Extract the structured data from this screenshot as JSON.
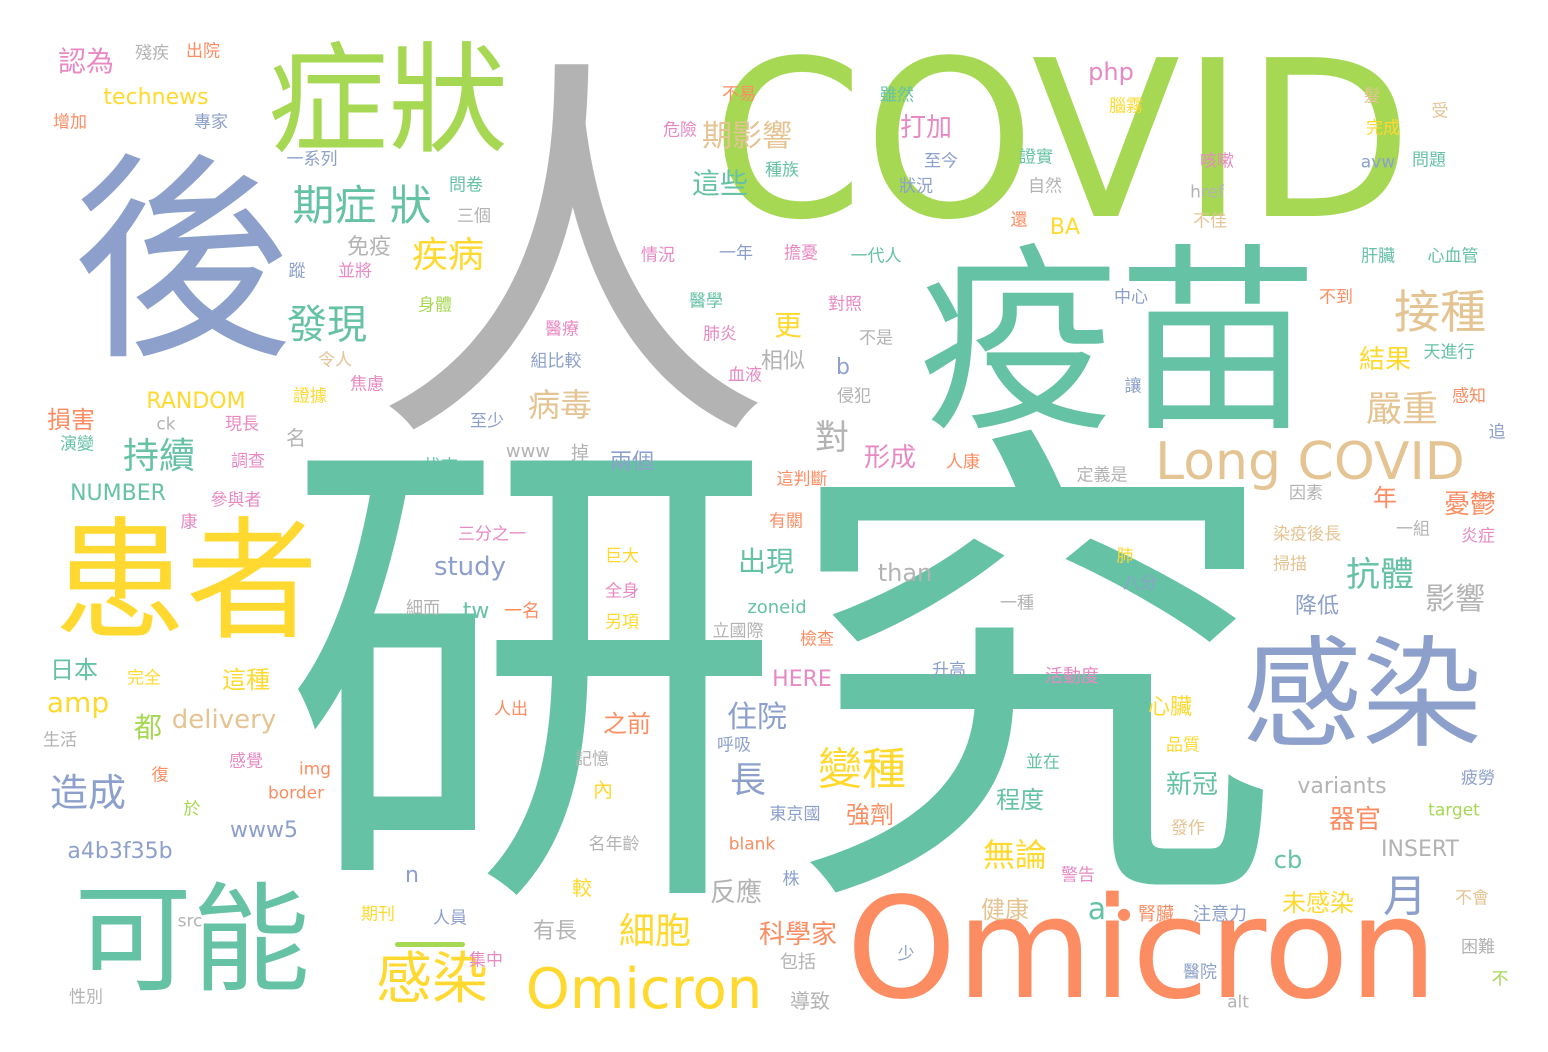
{
  "palette": {
    "green": "#66c2a5",
    "orange": "#fc8d62",
    "blue": "#8da0cb",
    "pink": "#e78ac3",
    "lime": "#a6d854",
    "yellow": "#ffd92f",
    "tan": "#e5c494",
    "gray": "#b3b3b3"
  },
  "words": [
    {
      "text": "研究",
      "color": "green"
    },
    {
      "text": "人",
      "color": "gray"
    },
    {
      "text": "COVID",
      "color": "lime"
    },
    {
      "text": "疫苗",
      "color": "green"
    },
    {
      "text": "後",
      "color": "blue"
    },
    {
      "text": "Omicron",
      "color": "orange"
    },
    {
      "text": "患者",
      "color": "yellow"
    },
    {
      "text": "症狀",
      "color": "lime"
    },
    {
      "text": "感染",
      "color": "blue"
    },
    {
      "text": "可能",
      "color": "green"
    },
    {
      "text": "Long COVID",
      "color": "tan"
    },
    {
      "text": "Omicron",
      "color": "yellow"
    },
    {
      "text": "感染",
      "color": "yellow"
    },
    {
      "text": "期症 狀",
      "color": "green"
    },
    {
      "text": "接種",
      "color": "tan"
    },
    {
      "text": "發現",
      "color": "green"
    },
    {
      "text": "變種",
      "color": "yellow"
    },
    {
      "text": "疾病",
      "color": "yellow"
    },
    {
      "text": "持續",
      "color": "green"
    },
    {
      "text": "造成",
      "color": "blue"
    },
    {
      "text": "嚴重",
      "color": "tan"
    },
    {
      "text": "病毒",
      "color": "tan"
    },
    {
      "text": "期影響",
      "color": "tan"
    },
    {
      "text": "抗體",
      "color": "green"
    },
    {
      "text": "月",
      "color": "blue"
    },
    {
      "text": "細胞",
      "color": "yellow"
    },
    {
      "text": "住院",
      "color": "blue"
    },
    {
      "text": "無論",
      "color": "yellow"
    },
    {
      "text": "結果",
      "color": "yellow"
    },
    {
      "text": "影響",
      "color": "gray"
    },
    {
      "text": "憂鬱",
      "color": "orange"
    },
    {
      "text": "長",
      "color": "blue"
    },
    {
      "text": "更",
      "color": "yellow"
    },
    {
      "text": "對",
      "color": "gray"
    },
    {
      "text": "這些",
      "color": "green"
    },
    {
      "text": "形成",
      "color": "pink"
    },
    {
      "text": "打加",
      "color": "pink"
    },
    {
      "text": "出現",
      "color": "green"
    },
    {
      "text": "強劑",
      "color": "orange"
    },
    {
      "text": "程度",
      "color": "green"
    },
    {
      "text": "新冠",
      "color": "green"
    },
    {
      "text": "器官",
      "color": "orange"
    },
    {
      "text": "科學家",
      "color": "orange"
    },
    {
      "text": "未感染",
      "color": "yellow"
    },
    {
      "text": "反應",
      "color": "gray"
    },
    {
      "text": "健康",
      "color": "tan"
    },
    {
      "text": "兩個",
      "color": "blue"
    },
    {
      "text": "相似",
      "color": "gray"
    },
    {
      "text": "之前",
      "color": "orange"
    },
    {
      "text": "心臟",
      "color": "yellow"
    },
    {
      "text": "降低",
      "color": "blue"
    },
    {
      "text": "年",
      "color": "orange"
    },
    {
      "text": "這種",
      "color": "yellow"
    },
    {
      "text": "都",
      "color": "lime"
    },
    {
      "text": "損害",
      "color": "orange"
    },
    {
      "text": "日本",
      "color": "green"
    },
    {
      "text": "免疫",
      "color": "gray"
    },
    {
      "text": "認為",
      "color": "pink"
    },
    {
      "text": "study",
      "color": "blue"
    },
    {
      "text": "delivery",
      "color": "tan"
    },
    {
      "text": "amp",
      "color": "yellow"
    },
    {
      "text": "RANDOM",
      "color": "yellow"
    },
    {
      "text": "NUMBER",
      "color": "green"
    },
    {
      "text": "a4b3f35b",
      "color": "blue"
    },
    {
      "text": "www5",
      "color": "blue"
    },
    {
      "text": "technews",
      "color": "yellow"
    },
    {
      "text": "php",
      "color": "pink"
    },
    {
      "text": "variants",
      "color": "gray"
    },
    {
      "text": "INSERT",
      "color": "gray"
    },
    {
      "text": "than",
      "color": "gray"
    },
    {
      "text": "HERE",
      "color": "pink"
    },
    {
      "text": "BA",
      "color": "yellow"
    },
    {
      "text": "tw",
      "color": "green"
    },
    {
      "text": "一名",
      "color": "orange"
    },
    {
      "text": "cb",
      "color": "green"
    },
    {
      "text": "a",
      "color": "green"
    },
    {
      "text": "●",
      "color": "orange"
    },
    {
      "text": "腎臟",
      "color": "orange"
    },
    {
      "text": "注意力",
      "color": "blue"
    },
    {
      "text": "n",
      "color": "blue"
    },
    {
      "text": "b",
      "color": "blue"
    },
    {
      "text": "名",
      "color": "gray"
    },
    {
      "text": "內",
      "color": "yellow"
    },
    {
      "text": "較",
      "color": "yellow"
    },
    {
      "text": "有長",
      "color": "gray"
    },
    {
      "text": "導致",
      "color": "gray"
    },
    {
      "text": "包括",
      "color": "gray"
    },
    {
      "text": "www",
      "color": "gray"
    },
    {
      "text": "掉",
      "color": "gray"
    },
    {
      "text": "找來",
      "color": "green"
    },
    {
      "text": "至少",
      "color": "blue"
    },
    {
      "text": "三分之一",
      "color": "pink"
    },
    {
      "text": "巨大",
      "color": "yellow"
    },
    {
      "text": "全身",
      "color": "pink"
    },
    {
      "text": "另項",
      "color": "yellow"
    },
    {
      "text": "zoneid",
      "color": "green"
    },
    {
      "text": "立國際",
      "color": "gray"
    },
    {
      "text": "檢查",
      "color": "orange"
    },
    {
      "text": "升高",
      "color": "blue"
    },
    {
      "text": "活動度",
      "color": "pink"
    },
    {
      "text": "東京國",
      "color": "blue"
    },
    {
      "text": "blank",
      "color": "orange"
    },
    {
      "text": "株",
      "color": "blue"
    },
    {
      "text": "期刊",
      "color": "yellow"
    },
    {
      "text": "人員",
      "color": "blue"
    },
    {
      "text": "集中",
      "color": "pink"
    },
    {
      "text": "少",
      "color": "blue"
    },
    {
      "text": "名年齡",
      "color": "gray"
    },
    {
      "text": "記憶",
      "color": "gray"
    },
    {
      "text": "呼吸",
      "color": "blue"
    },
    {
      "text": "並在",
      "color": "green"
    },
    {
      "text": "品質",
      "color": "yellow"
    },
    {
      "text": "發作",
      "color": "tan"
    },
    {
      "text": "警告",
      "color": "pink"
    },
    {
      "text": "醫院",
      "color": "blue"
    },
    {
      "text": "困難",
      "color": "gray"
    },
    {
      "text": "不會",
      "color": "tan"
    },
    {
      "text": "不",
      "color": "lime"
    },
    {
      "text": "alt",
      "color": "gray"
    },
    {
      "text": "target",
      "color": "lime"
    },
    {
      "text": "疲勞",
      "color": "blue"
    },
    {
      "text": "細而",
      "color": "gray"
    },
    {
      "text": "一種",
      "color": "gray"
    },
    {
      "text": "八分",
      "color": "blue"
    },
    {
      "text": "掃描",
      "color": "tan"
    },
    {
      "text": "肺",
      "color": "yellow"
    },
    {
      "text": "染疫後長",
      "color": "tan"
    },
    {
      "text": "一組",
      "color": "gray"
    },
    {
      "text": "炎症",
      "color": "pink"
    },
    {
      "text": "因素",
      "color": "gray"
    },
    {
      "text": "定義是",
      "color": "gray"
    },
    {
      "text": "追",
      "color": "blue"
    },
    {
      "text": "感知",
      "color": "orange"
    },
    {
      "text": "讓",
      "color": "blue"
    },
    {
      "text": "天進行",
      "color": "green"
    },
    {
      "text": "不到",
      "color": "orange"
    },
    {
      "text": "中心",
      "color": "blue"
    },
    {
      "text": "肝臟",
      "color": "green"
    },
    {
      "text": "心血管",
      "color": "green"
    },
    {
      "text": "不佳",
      "color": "tan"
    },
    {
      "text": "href",
      "color": "gray"
    },
    {
      "text": "avw",
      "color": "blue"
    },
    {
      "text": "問題",
      "color": "green"
    },
    {
      "text": "完成",
      "color": "yellow"
    },
    {
      "text": "髮",
      "color": "tan"
    },
    {
      "text": "受",
      "color": "tan"
    },
    {
      "text": "咳嗽",
      "color": "pink"
    },
    {
      "text": "腦霧",
      "color": "yellow"
    },
    {
      "text": "證實",
      "color": "green"
    },
    {
      "text": "自然",
      "color": "gray"
    },
    {
      "text": "還",
      "color": "orange"
    },
    {
      "text": "雖然",
      "color": "green"
    },
    {
      "text": "不易",
      "color": "orange"
    },
    {
      "text": "危險",
      "color": "pink"
    },
    {
      "text": "種族",
      "color": "green"
    },
    {
      "text": "至今",
      "color": "blue"
    },
    {
      "text": "狀況",
      "color": "blue"
    },
    {
      "text": "一系列",
      "color": "blue"
    },
    {
      "text": "問卷",
      "color": "green"
    },
    {
      "text": "三個",
      "color": "gray"
    },
    {
      "text": "蹤",
      "color": "blue"
    },
    {
      "text": "並將",
      "color": "pink"
    },
    {
      "text": "身體",
      "color": "lime"
    },
    {
      "text": "令人",
      "color": "tan"
    },
    {
      "text": "焦慮",
      "color": "pink"
    },
    {
      "text": "證據",
      "color": "yellow"
    },
    {
      "text": "情況",
      "color": "pink"
    },
    {
      "text": "一年",
      "color": "blue"
    },
    {
      "text": "擔憂",
      "color": "pink"
    },
    {
      "text": "一代人",
      "color": "green"
    },
    {
      "text": "醫學",
      "color": "green"
    },
    {
      "text": "對照",
      "color": "pink"
    },
    {
      "text": "醫療",
      "color": "pink"
    },
    {
      "text": "肺炎",
      "color": "pink"
    },
    {
      "text": "組比較",
      "color": "blue"
    },
    {
      "text": "不是",
      "color": "gray"
    },
    {
      "text": "血液",
      "color": "pink"
    },
    {
      "text": "侵犯",
      "color": "gray"
    },
    {
      "text": "這判斷",
      "color": "orange"
    },
    {
      "text": "人康",
      "color": "orange"
    },
    {
      "text": "有關",
      "color": "orange"
    },
    {
      "text": "參與者",
      "color": "pink"
    },
    {
      "text": "康",
      "color": "pink"
    },
    {
      "text": "調查",
      "color": "pink"
    },
    {
      "text": "現長",
      "color": "pink"
    },
    {
      "text": "演變",
      "color": "green"
    },
    {
      "text": "ck",
      "color": "gray"
    },
    {
      "text": "殘疾",
      "color": "gray"
    },
    {
      "text": "出院",
      "color": "orange"
    },
    {
      "text": "增加",
      "color": "orange"
    },
    {
      "text": "專家",
      "color": "blue"
    },
    {
      "text": "完全",
      "color": "yellow"
    },
    {
      "text": "生活",
      "color": "gray"
    },
    {
      "text": "復",
      "color": "orange"
    },
    {
      "text": "感覺",
      "color": "pink"
    },
    {
      "text": "於",
      "color": "lime"
    },
    {
      "text": "img",
      "color": "orange"
    },
    {
      "text": "border",
      "color": "orange"
    },
    {
      "text": "人出",
      "color": "orange"
    },
    {
      "text": "src",
      "color": "gray"
    },
    {
      "text": "性別",
      "color": "gray"
    }
  ]
}
